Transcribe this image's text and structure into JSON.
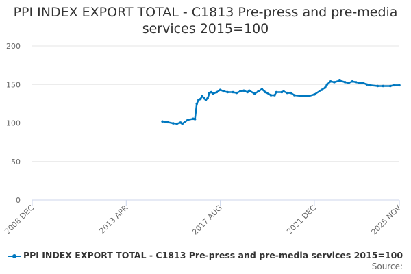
{
  "chart_data": {
    "type": "line",
    "title": "PPI INDEX EXPORT TOTAL - C1813 Pre-press and pre-media services 2015=100",
    "xlabel": "",
    "ylabel": "",
    "ylim": [
      0,
      200
    ],
    "yticks": [
      "0",
      "50",
      "100",
      "150",
      "200"
    ],
    "xrange": [
      "2008-12",
      "2025-11"
    ],
    "xticks": [
      {
        "label": "2008 DEC",
        "date": "2008-12"
      },
      {
        "label": "2013 APR",
        "date": "2013-04"
      },
      {
        "label": "2017 AUG",
        "date": "2017-08"
      },
      {
        "label": "2021 DEC",
        "date": "2021-12"
      },
      {
        "label": "2025 NOV",
        "date": "2025-11"
      }
    ],
    "grid": true,
    "legend_position": "bottom",
    "series": [
      {
        "name": "PPI INDEX EXPORT TOTAL - C1813 Pre-press and pre-media services 2015=100",
        "color": "#0078c0",
        "points": [
          [
            "2014-12",
            102
          ],
          [
            "2015-03",
            101
          ],
          [
            "2015-06",
            99.5
          ],
          [
            "2015-08",
            99
          ],
          [
            "2015-10",
            100.5
          ],
          [
            "2015-11",
            99
          ],
          [
            "2016-02",
            104
          ],
          [
            "2016-05",
            105.5
          ],
          [
            "2016-06",
            105
          ],
          [
            "2016-07",
            125
          ],
          [
            "2016-08",
            130
          ],
          [
            "2016-09",
            131
          ],
          [
            "2016-10",
            135
          ],
          [
            "2016-11",
            132
          ],
          [
            "2016-12",
            130
          ],
          [
            "2017-01",
            132
          ],
          [
            "2017-02",
            139
          ],
          [
            "2017-03",
            140
          ],
          [
            "2017-04",
            138
          ],
          [
            "2017-06",
            140
          ],
          [
            "2017-08",
            143
          ],
          [
            "2017-10",
            141
          ],
          [
            "2017-12",
            140
          ],
          [
            "2018-03",
            140
          ],
          [
            "2018-05",
            139
          ],
          [
            "2018-07",
            141
          ],
          [
            "2018-09",
            142
          ],
          [
            "2018-11",
            140
          ],
          [
            "2018-12",
            142
          ],
          [
            "2019-03",
            138
          ],
          [
            "2019-05",
            141
          ],
          [
            "2019-07",
            144
          ],
          [
            "2019-09",
            140
          ],
          [
            "2019-12",
            136
          ],
          [
            "2020-02",
            136
          ],
          [
            "2020-03",
            140
          ],
          [
            "2020-06",
            140
          ],
          [
            "2020-07",
            141
          ],
          [
            "2020-09",
            139
          ],
          [
            "2020-11",
            139
          ],
          [
            "2021-01",
            136
          ],
          [
            "2021-05",
            135
          ],
          [
            "2021-09",
            135
          ],
          [
            "2021-12",
            137
          ],
          [
            "2022-04",
            143
          ],
          [
            "2022-06",
            146
          ],
          [
            "2022-07",
            150
          ],
          [
            "2022-09",
            154
          ],
          [
            "2022-11",
            153
          ],
          [
            "2023-02",
            155
          ],
          [
            "2023-05",
            153
          ],
          [
            "2023-07",
            152
          ],
          [
            "2023-09",
            154
          ],
          [
            "2023-11",
            153
          ],
          [
            "2024-01",
            152
          ],
          [
            "2024-03",
            152
          ],
          [
            "2024-05",
            150
          ],
          [
            "2024-07",
            149
          ],
          [
            "2024-11",
            148
          ],
          [
            "2025-02",
            148
          ],
          [
            "2025-06",
            148
          ],
          [
            "2025-08",
            149
          ],
          [
            "2025-11",
            149
          ]
        ]
      }
    ]
  },
  "source_label": "Source:"
}
